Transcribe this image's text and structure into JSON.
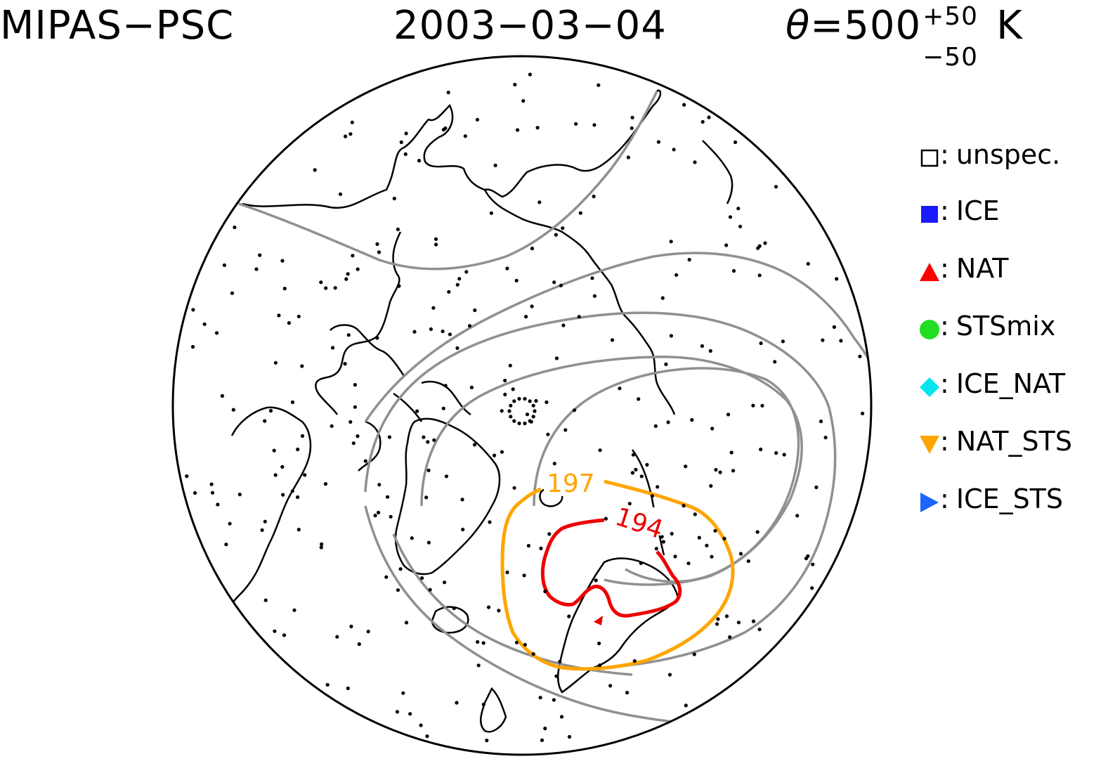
{
  "header": {
    "instrument": "MIPAS−PSC",
    "date": "2003−03−04",
    "theta_symbol": "θ",
    "theta_value": "=500",
    "theta_plus": "+50",
    "theta_minus": "−50",
    "theta_unit": "K"
  },
  "legend": [
    {
      "label": "unspec.",
      "symbol": "open-square",
      "color": "#000000"
    },
    {
      "label": "ICE",
      "symbol": "filled-square",
      "color": "#1a1aff"
    },
    {
      "label": "NAT",
      "symbol": "triangle-up",
      "color": "#ff0000"
    },
    {
      "label": "STSmix",
      "symbol": "circle",
      "color": "#22dd22"
    },
    {
      "label": "ICE_NAT",
      "symbol": "diamond",
      "color": "#00e5ee"
    },
    {
      "label": "NAT_STS",
      "symbol": "triangle-down",
      "color": "#ffa500"
    },
    {
      "label": "ICE_STS",
      "symbol": "triangle-right",
      "color": "#1a66ff"
    }
  ],
  "contours": {
    "orange_label": "197",
    "orange_color": "#ffa500",
    "red_label": "194",
    "red_color": "#ee0000",
    "grey_color": "#909090"
  }
}
